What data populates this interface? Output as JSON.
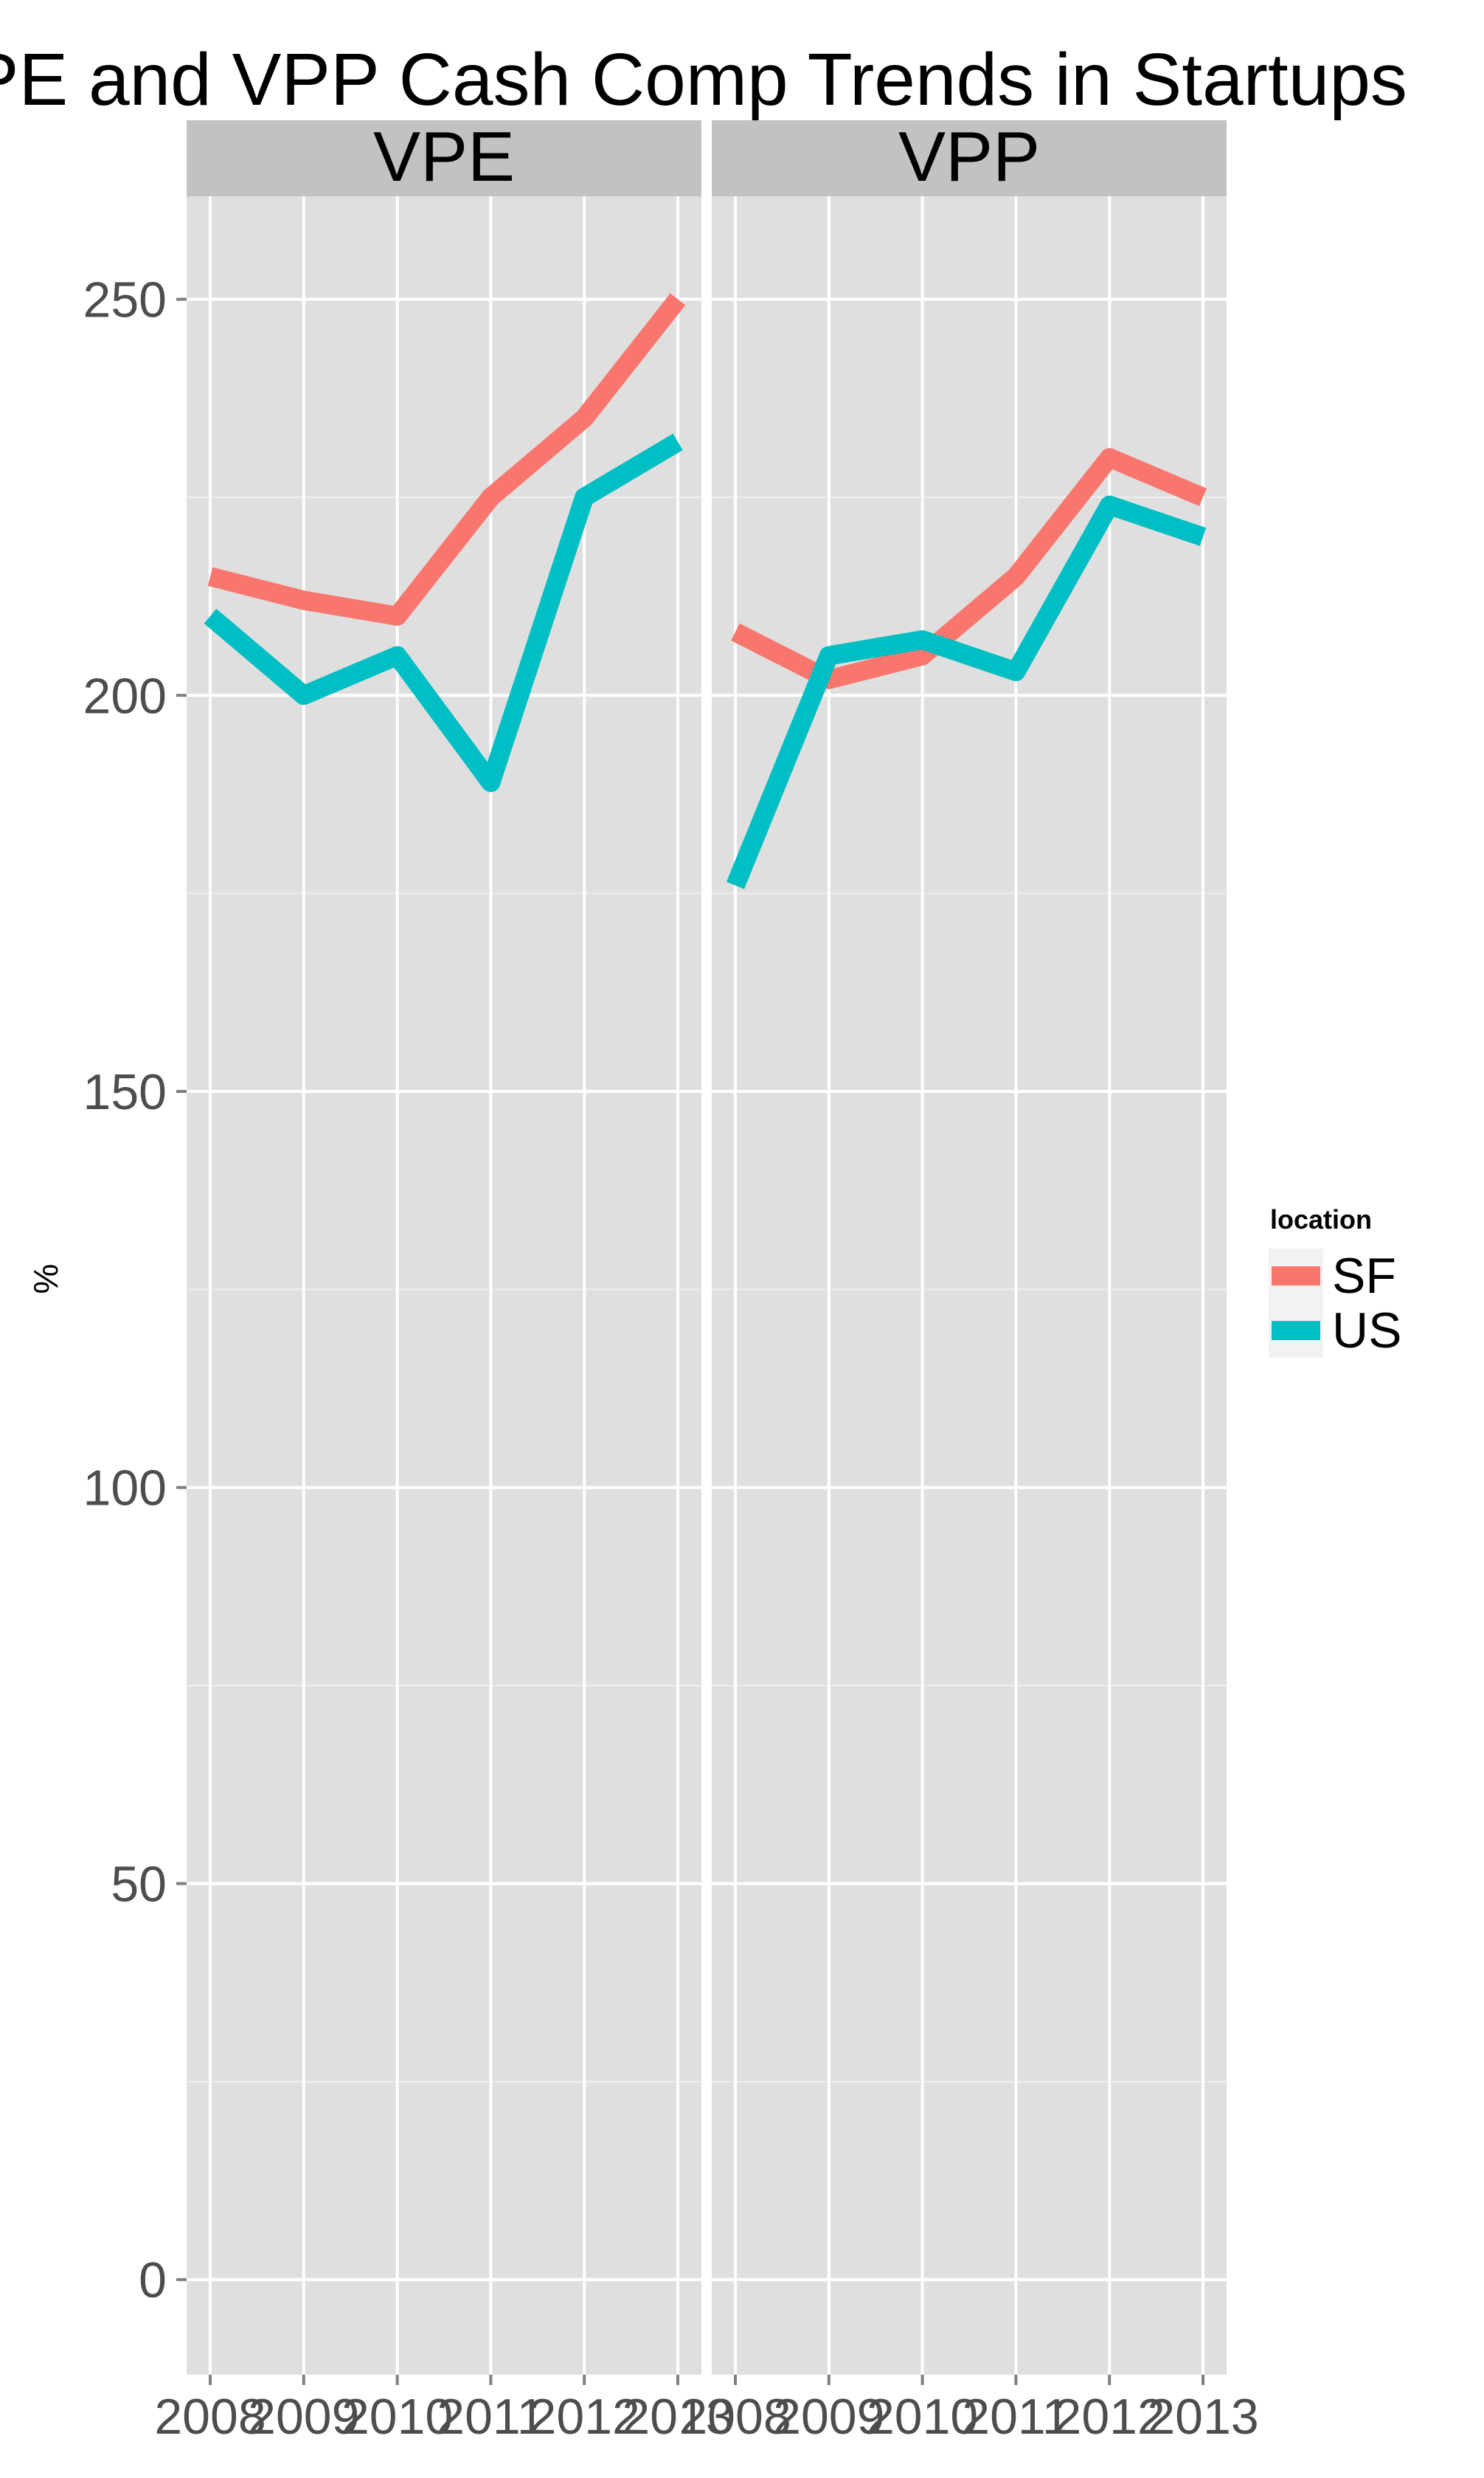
{
  "chart_data": {
    "type": "line",
    "title": "VPE and VPP Cash Comp Trends in Startups",
    "ylabel": "%",
    "xlabel": "",
    "x": [
      "2008",
      "2009",
      "2010",
      "2011",
      "2012",
      "2013"
    ],
    "ylim": [
      -12,
      263
    ],
    "yticks": [
      "0",
      "50",
      "100",
      "150",
      "200",
      "250"
    ],
    "grid": true,
    "legend": {
      "title": "location",
      "placement": "right",
      "entries": [
        "SF",
        "US"
      ]
    },
    "series_colors": {
      "SF": "#F8766D",
      "US": "#00BFC4"
    },
    "panels": [
      {
        "label": "VPE",
        "series": [
          {
            "name": "SF",
            "values": [
              215,
              212,
              210,
              225,
              235,
              250
            ]
          },
          {
            "name": "US",
            "values": [
              210,
              200,
              205,
              189,
              225,
              232
            ]
          }
        ]
      },
      {
        "label": "VPP",
        "series": [
          {
            "name": "SF",
            "values": [
              208,
              202,
              205,
              215,
              230,
              225
            ]
          },
          {
            "name": "US",
            "values": [
              176,
              205,
              207,
              203,
              224,
              220
            ]
          }
        ]
      }
    ]
  }
}
